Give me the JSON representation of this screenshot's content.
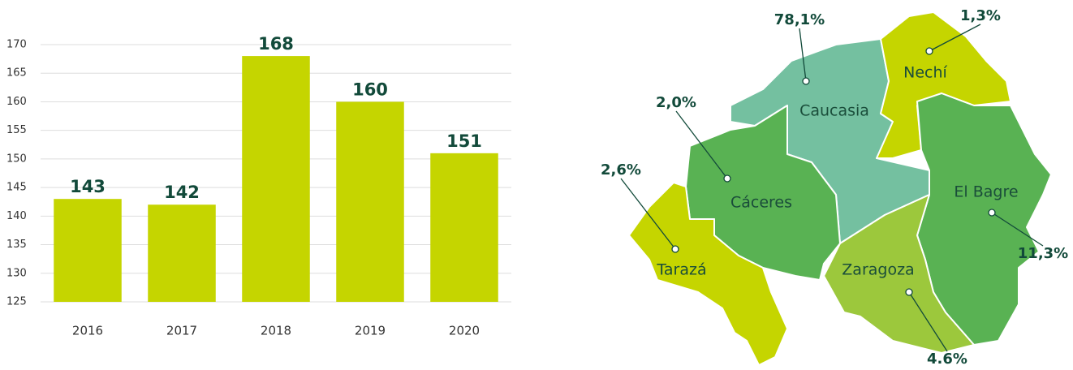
{
  "chart_data": {
    "type": "bar",
    "categories": [
      "2016",
      "2017",
      "2018",
      "2019",
      "2020"
    ],
    "values": [
      143,
      142,
      168,
      160,
      151
    ],
    "color": "#c5d500",
    "ylim": [
      125,
      170
    ],
    "yticks": [
      125,
      130,
      135,
      140,
      145,
      150,
      155,
      160,
      165,
      170
    ],
    "grid": true
  },
  "map": {
    "regions": [
      {
        "name": "Caucasia",
        "share": "78,1%"
      },
      {
        "name": "Nechí",
        "share": "1,3%"
      },
      {
        "name": "El Bagre",
        "share": "11,3%"
      },
      {
        "name": "Cáceres",
        "share": "2,0%"
      },
      {
        "name": "Tarazá",
        "share": "2,6%"
      },
      {
        "name": "Zaragoza",
        "share": "4.6%"
      }
    ]
  }
}
